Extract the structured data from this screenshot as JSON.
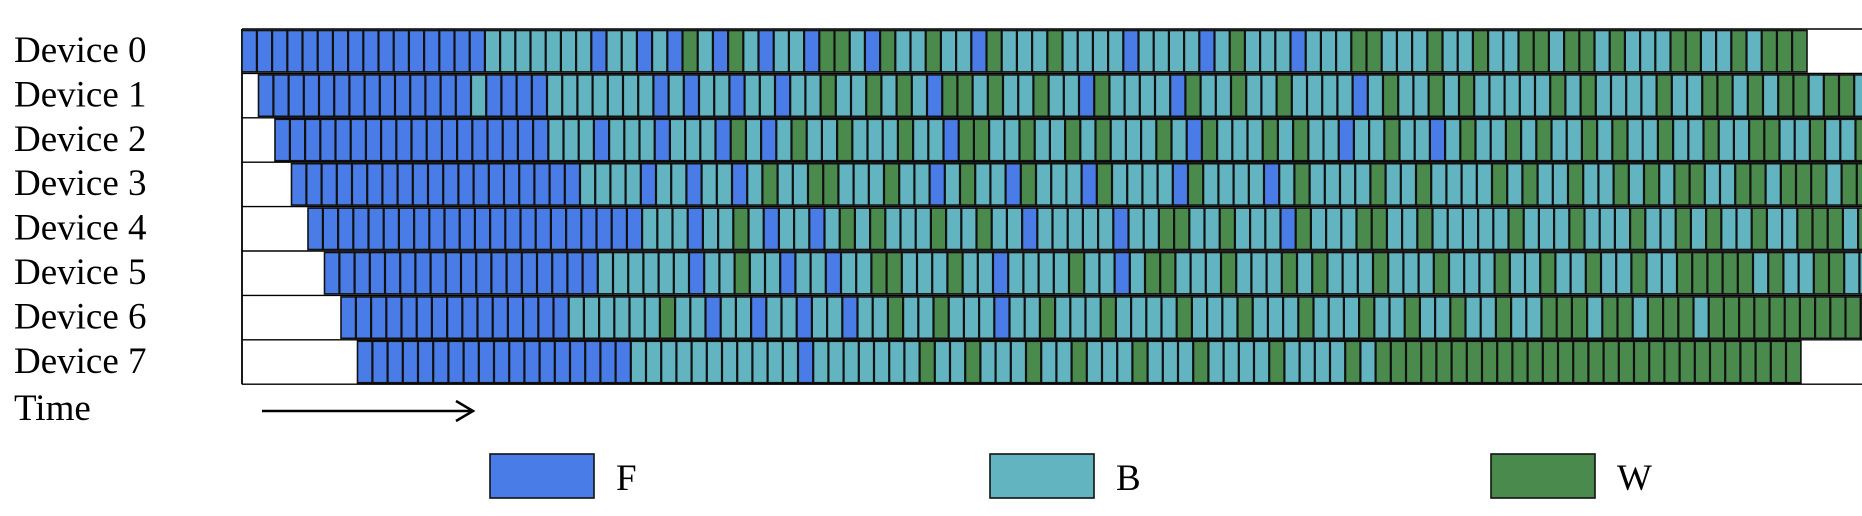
{
  "rows": [
    {
      "label": "Device 0",
      "seq": "FFFFFFFFFFFFFFFFBBBBBBBFBBFBFWBFWBFBBFWWBFWBBWBBFWBBBWBBBBFBBBBFBWBBBFBBBWWBBBWBBWBBWWBWWBWBBBWWBBWBWWW"
    },
    {
      "label": "Device 1",
      "seq": "FFFFFFFFFFFFFFBFFFFBBBBBBBFBFBBFBBFBBWBBWBWBFWWBWBBWBBFWBBBBFWBBWBBWBBBBFBWBBWBWBBBBBWBWBBBBWBBWWBWBWWBWWBWWBWBWWWWW"
    },
    {
      "label": "Device 2",
      "seq": "FFFFFFFFFFFFFFFFFFBBBFBBBFBBBFWBFBWBBWBBBWBBFWWBBWBBWBWBBBWBFWBBBWBWBBFBBWBBFBWBBWBWBBWBWBBWBBWBBWWBBWBBWWBWWBWWBWW"
    },
    {
      "label": "Device 3",
      "seq": "FFFFFFFFFFFFFFFFFFFBBBBFBBFBBFBWBBWWBBBWBBFBWBBFWBBBFWBBBBFWBBBBFBWBBBBWBBWBBBBWBWBBWBBWBWBWWBBWWBWWWBWWWWWWWWWWWWWWW"
    },
    {
      "label": "Device 4",
      "seq": "FFFFFFFFFFFFFFFFFFFFFFBBBFBBWBFBBFBWBWBBBWBBWBBFBBBBBFBBWWBBWBBBFWBBBWWBBWBBBBBWBBBWBBBWBBWBWBBWBBWWWBWWBWWBWWWWWWWWW"
    },
    {
      "label": "Device 5",
      "seq": "FFFFFFFFFFFFFFFFFFBBBBBBFBBWBBFBBFBBWWBBBWBBFBBBBWBBFBWWBBBWBBBWBWBBBWBBBWBBBWBBWBBWBBWBBWWWWWBWBBWWBBWBWWWWWWWWWWWWWW"
    },
    {
      "label": "Device 6",
      "seq": "FFFFFFFFFFFFFFFBBBBBBWBBFBBFBBFBBFBBWBBWBBBFBBWBBBWBBBBWBBBWBBBWBBBWBBWBBWBBWBBWWWBWWBWWWBWWWWWWWWWWWWWWWWWWWWW"
    },
    {
      "label": "Device 7",
      "seq": "FFFFFFFFFFFFFFFFFFBBBBBBBBBBBFBBBBBBBWBBWBBBWBBWBBBWBBBWBBBBWBBBBWBWWWWWWWWWWWWWWWWWWWWWWWWWWWW"
    }
  ],
  "time_label": "Time",
  "legend": [
    {
      "label": "F",
      "color": "#4a7ce8"
    },
    {
      "label": "B",
      "color": "#62b4c0"
    },
    {
      "label": "W",
      "color": "#4a8a4d"
    }
  ]
}
